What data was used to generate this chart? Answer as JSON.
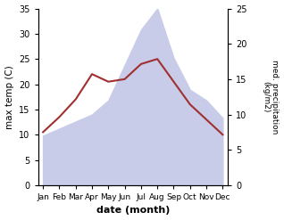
{
  "months": [
    "Jan",
    "Feb",
    "Mar",
    "Apr",
    "May",
    "Jun",
    "Jul",
    "Aug",
    "Sep",
    "Oct",
    "Nov",
    "Dec"
  ],
  "month_indices": [
    0,
    1,
    2,
    3,
    4,
    5,
    6,
    7,
    8,
    9,
    10,
    11
  ],
  "temperature": [
    10.5,
    13.5,
    17.0,
    22.0,
    20.5,
    21.0,
    24.0,
    25.0,
    20.5,
    16.0,
    13.0,
    10.0
  ],
  "precipitation": [
    7.0,
    8.0,
    9.0,
    10.0,
    12.0,
    17.0,
    22.0,
    25.0,
    18.0,
    13.5,
    12.0,
    9.5
  ],
  "temp_color": "#a03030",
  "precip_fill_color": "#c8cce8",
  "ylim_left": [
    0,
    35
  ],
  "ylim_right": [
    0,
    25
  ],
  "yticks_left": [
    0,
    5,
    10,
    15,
    20,
    25,
    30,
    35
  ],
  "yticks_right": [
    0,
    5,
    10,
    15,
    20,
    25
  ],
  "xlabel": "date (month)",
  "ylabel_left": "max temp (C)",
  "ylabel_right": "med. precipitation\n(kg/m2)",
  "background_color": "#ffffff",
  "line_width": 1.5
}
